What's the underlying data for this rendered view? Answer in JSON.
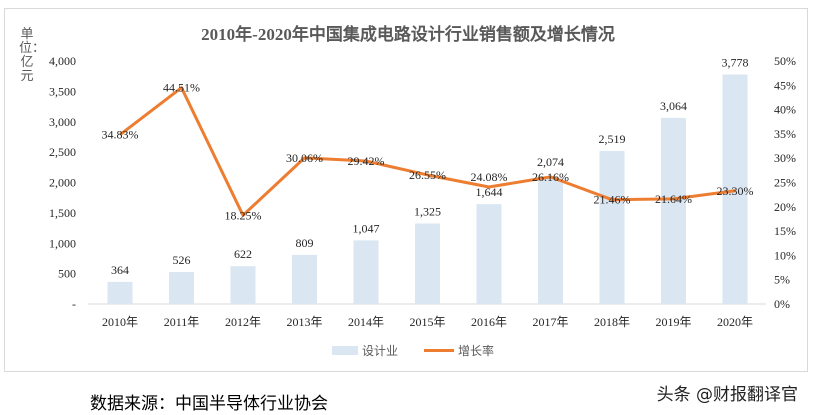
{
  "chart_data": {
    "type": "bar+line",
    "title": "2010年-2020年中国集成电路设计行业销售额及增长情况",
    "ylabel": "单位：亿元",
    "categories": [
      "2010年",
      "2011年",
      "2012年",
      "2013年",
      "2014年",
      "2015年",
      "2016年",
      "2017年",
      "2018年",
      "2019年",
      "2020年"
    ],
    "series": [
      {
        "name": "设计业",
        "type": "bar",
        "axis": "left",
        "color": "#dae6f2",
        "values": [
          364,
          526,
          622,
          809,
          1047,
          1325,
          1644,
          2074,
          2519,
          3064,
          3778
        ],
        "labels": [
          "364",
          "526",
          "622",
          "809",
          "1,047",
          "1,325",
          "1,644",
          "2,074",
          "2,519",
          "3,064",
          "3,778"
        ]
      },
      {
        "name": "增长率",
        "type": "line",
        "axis": "right",
        "color": "#ed7d31",
        "values": [
          34.83,
          44.51,
          18.25,
          30.06,
          29.42,
          26.55,
          24.08,
          26.16,
          21.46,
          21.64,
          23.3
        ],
        "labels": [
          "34.83%",
          "44.51%",
          "18.25%",
          "30.06%",
          "29.42%",
          "26.55%",
          "24.08%",
          "26.16%",
          "21.46%",
          "21.64%",
          "23.30%"
        ]
      }
    ],
    "ylim": [
      0,
      4000
    ],
    "yticks": [
      "-",
      "500",
      "1,000",
      "1,500",
      "2,000",
      "2,500",
      "3,000",
      "3,500",
      "4,000"
    ],
    "y2lim": [
      0,
      50
    ],
    "y2ticks": [
      "0%",
      "5%",
      "10%",
      "15%",
      "20%",
      "25%",
      "30%",
      "35%",
      "40%",
      "45%",
      "50%"
    ],
    "grid": false,
    "legend": "bottom"
  },
  "source": "数据来源：中国半导体行业协会",
  "watermark": "头条 @财报翻译官"
}
